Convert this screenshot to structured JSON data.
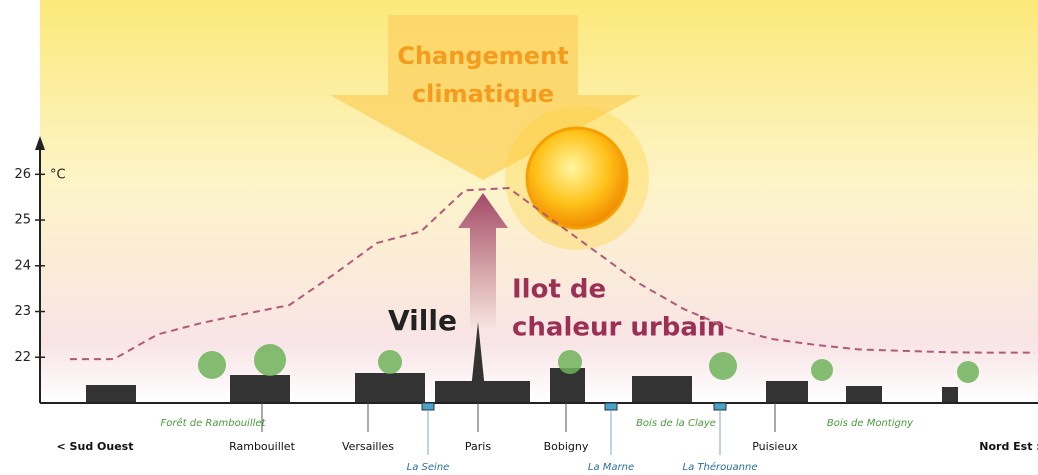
{
  "chart_data": {
    "type": "line",
    "cause_lines": [
      "Changement",
      "climatique"
    ],
    "effect_lines": [
      "Ilot de",
      "chaleur urbain"
    ],
    "city_label": "Ville",
    "y_label": "°C",
    "categories": [
      null,
      null,
      null,
      null,
      null,
      null,
      null,
      null,
      null,
      null,
      null,
      null,
      null,
      null,
      null,
      null,
      null,
      null,
      null,
      null,
      null,
      null,
      null
    ],
    "series": [
      {
        "color": "#b05a7a",
        "values": [
          21.96,
          21.96,
          22.5,
          22.75,
          22.95,
          23.14,
          23.8,
          24.5,
          24.75,
          25.65,
          25.7,
          25.0,
          24.3,
          23.6,
          23.05,
          22.65,
          22.4,
          22.27,
          22.17,
          22.14,
          22.11,
          22.1,
          22.1
        ]
      }
    ],
    "ylim": [
      21,
      26.75
    ],
    "yticks": [
      22,
      23,
      24,
      25,
      26
    ],
    "places": [
      "< Sud Ouest",
      "Rambouillet",
      "Versailles",
      "Paris",
      "Bobigny",
      "Puisieux",
      "Nord Est :"
    ],
    "rivers": [
      "La Seine",
      "La Marne",
      "La Thérouanne"
    ],
    "forests": [
      "Forêt de Rambouillet",
      "Bois de la Claye",
      "Bois de Montigny"
    ]
  }
}
